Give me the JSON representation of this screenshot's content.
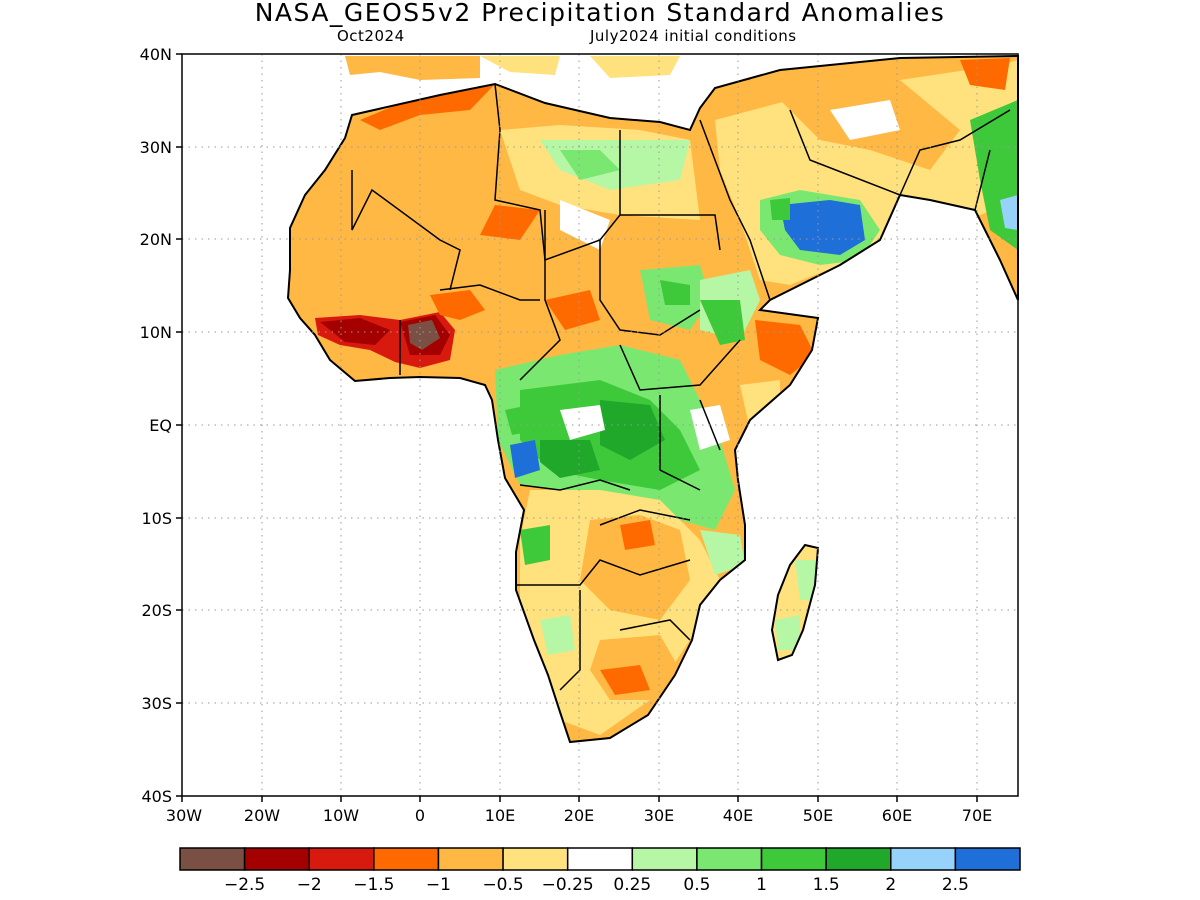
{
  "title": "NASA_GEOS5v2 Precipitation Standard Anomalies",
  "subtitle_left": "Oct2024",
  "subtitle_right": "July2024 initial conditions",
  "axes": {
    "lon_labels": [
      "30W",
      "20W",
      "10W",
      "0",
      "10E",
      "20E",
      "30E",
      "40E",
      "50E",
      "60E",
      "70E"
    ],
    "lat_labels": [
      "40N",
      "30N",
      "20N",
      "10N",
      "EQ",
      "10S",
      "20S",
      "30S",
      "40S"
    ],
    "lon_range": [
      -30,
      75
    ],
    "lat_range": [
      -40,
      40
    ],
    "grid": "dotted"
  },
  "colorbar": {
    "colors": [
      "#7a5044",
      "#a50000",
      "#d81a0e",
      "#ff6a00",
      "#ffb844",
      "#ffe27d",
      "#ffffff",
      "#b6f7a6",
      "#7ae870",
      "#3ec93a",
      "#20a82a",
      "#96d2fa",
      "#1f6fd9"
    ],
    "labels": [
      "−2.5",
      "−2",
      "−1.5",
      "−1",
      "−0.5",
      "−0.25",
      "0.25",
      "0.5",
      "1",
      "1.5",
      "2",
      "2.5"
    ]
  },
  "regions": [
    {
      "name": "sahara-north",
      "color": "#ffb844"
    },
    {
      "name": "arabia-negative",
      "color": "#ffe27d"
    },
    {
      "name": "central-africa-wet",
      "color": "#3ec93a"
    },
    {
      "name": "yemen-oman-positive",
      "color": "#1f6fd9"
    },
    {
      "name": "nigeria-strong-negative",
      "color": "#a50000"
    },
    {
      "name": "southern-africa-dry",
      "color": "#ffb844"
    }
  ]
}
